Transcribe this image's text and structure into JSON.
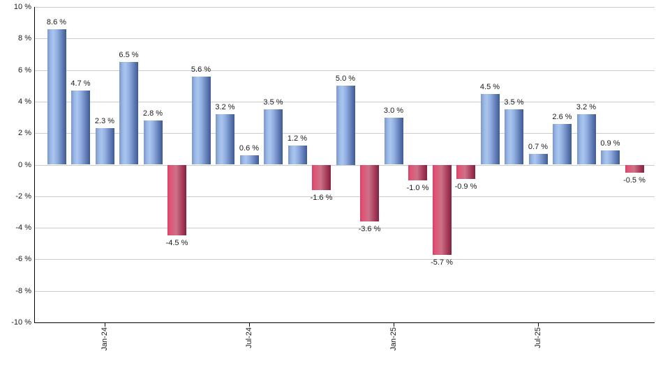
{
  "chart_data": {
    "type": "bar",
    "title": "",
    "values": [
      8.6,
      4.7,
      2.3,
      6.5,
      2.8,
      -4.5,
      5.6,
      3.2,
      0.6,
      3.5,
      1.2,
      -1.6,
      5.0,
      -3.6,
      3.0,
      -1.0,
      -5.7,
      -0.9,
      4.5,
      3.5,
      0.7,
      2.6,
      3.2,
      0.9,
      -0.5
    ],
    "bar_labels": [
      "8.6 %",
      "4.7 %",
      "2.3 %",
      "6.5 %",
      "2.8 %",
      "-4.5 %",
      "5.6 %",
      "3.2 %",
      "0.6 %",
      "3.5 %",
      "1.2 %",
      "-1.6 %",
      "5.0 %",
      "-3.6 %",
      "3.0 %",
      "-1.0 %",
      "-5.7 %",
      "-0.9 %",
      "4.5 %",
      "3.5 %",
      "0.7 %",
      "2.6 %",
      "3.2 %",
      "0.9 %",
      "-0.5 %"
    ],
    "y_axis": {
      "min": -10,
      "max": 10,
      "step": 2,
      "tick_labels": [
        "10 %",
        "8 %",
        "6 %",
        "4 %",
        "2 %",
        "0 %",
        "-2 %",
        "-4 %",
        "-6 %",
        "-8 %",
        "-10 %"
      ]
    },
    "x_axis": {
      "ticks": [
        {
          "label": "Jan-24",
          "bar_index": 2
        },
        {
          "label": "Jul-24",
          "bar_index": 8
        },
        {
          "label": "Jan-25",
          "bar_index": 14
        },
        {
          "label": "Jul-25",
          "bar_index": 20
        }
      ]
    },
    "grid": true,
    "legend": null,
    "colors": {
      "positive_bar_stops": [
        "#7a97cc 0%",
        "#9db9e6 18%",
        "#aac6ee 32%",
        "#8fade0 52%",
        "#647fb8 78%",
        "#3c5a94 100%"
      ],
      "negative_bar_stops": [
        "#d84166 0%",
        "#e05377 14%",
        "#cc7287 46%",
        "#a93f5e 76%",
        "#85213f 100%"
      ],
      "gridline": "#cccccc",
      "axis": "#000000",
      "label_text": "#1a1a1a"
    }
  }
}
